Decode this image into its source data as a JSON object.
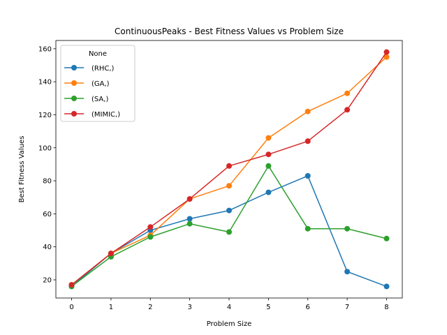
{
  "chart_data": {
    "type": "line",
    "title": "ContinuousPeaks - Best Fitness Values vs Problem Size",
    "xlabel": "Problem Size",
    "ylabel": "Best Fitness Values",
    "x": [
      0,
      1,
      2,
      3,
      4,
      5,
      6,
      7,
      8
    ],
    "xlim": [
      -0.4,
      8.4
    ],
    "ylim": [
      9,
      165
    ],
    "x_ticks": [
      0,
      1,
      2,
      3,
      4,
      5,
      6,
      7,
      8
    ],
    "y_ticks": [
      20,
      40,
      60,
      80,
      100,
      120,
      140,
      160
    ],
    "grid": false,
    "legend": {
      "title": "None",
      "placement": "top-left"
    },
    "series": [
      {
        "name": "(RHC,)",
        "color": "#1f77b4",
        "values": [
          16,
          36,
          50,
          57,
          62,
          73,
          83,
          25,
          16
        ]
      },
      {
        "name": "(GA,)",
        "color": "#ff7f0e",
        "values": [
          17,
          36,
          47,
          69,
          77,
          106,
          122,
          133,
          155
        ]
      },
      {
        "name": "(SA,)",
        "color": "#2ca02c",
        "values": [
          16,
          34,
          46,
          54,
          49,
          89,
          51,
          51,
          45
        ]
      },
      {
        "name": "(MIMIC,)",
        "color": "#d62728",
        "values": [
          17,
          36,
          52,
          69,
          89,
          96,
          104,
          123,
          158
        ]
      }
    ]
  }
}
